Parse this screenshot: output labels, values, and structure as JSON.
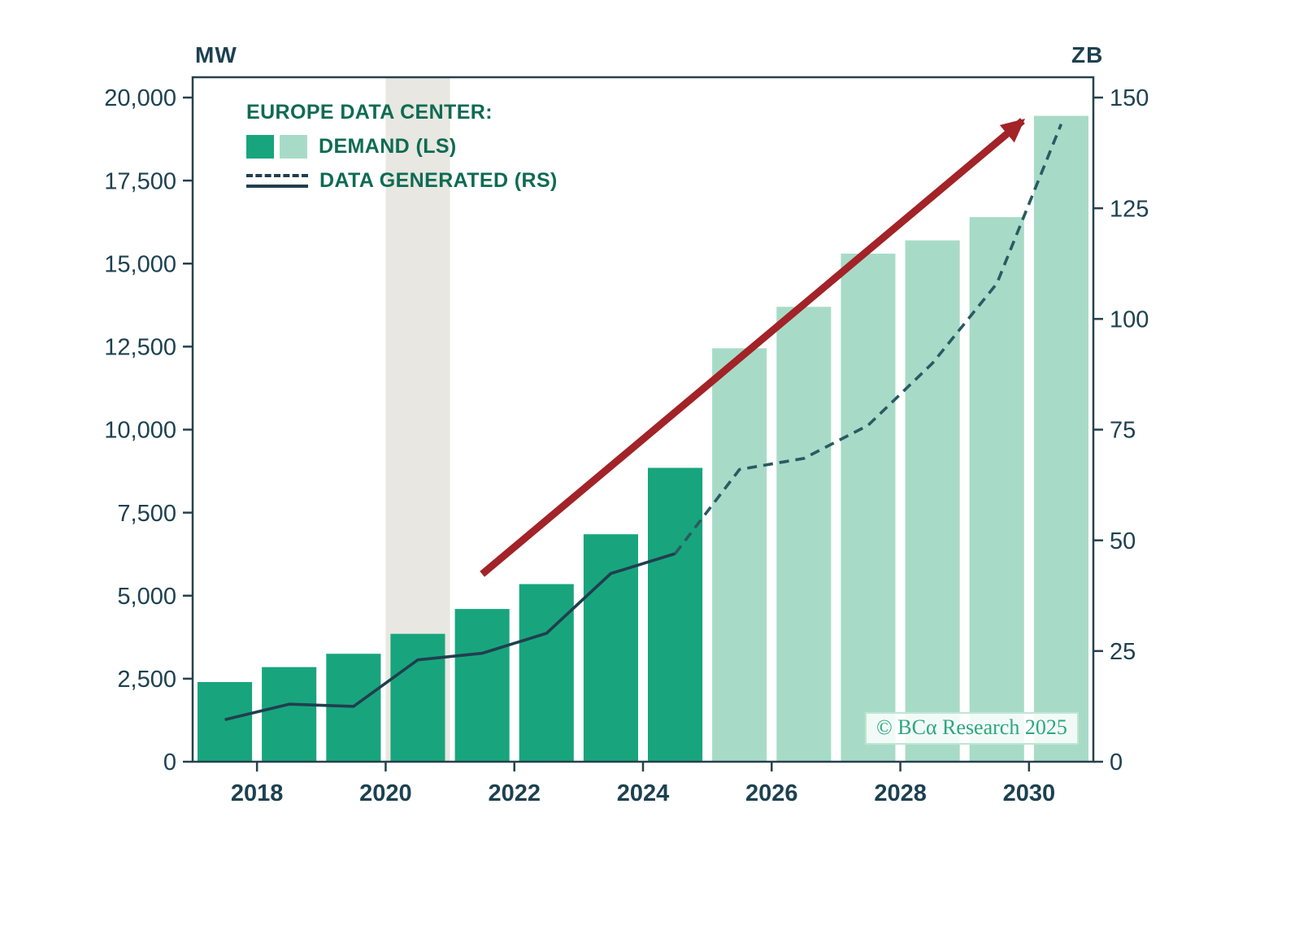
{
  "page": {
    "background": "#ffffff"
  },
  "chart_data": {
    "type": "bar+line",
    "title": "EUROPE DATA CENTER:",
    "watermark": "© BCα Research 2025",
    "axis_color": "#25414d",
    "text_color": "#1d4150",
    "legend_text_color": "#0d6b53",
    "left_axis": {
      "unit": "MW",
      "min": 0,
      "max": 20000,
      "tick_values": [
        0,
        2500,
        5000,
        7500,
        10000,
        12500,
        15000,
        17500,
        20000
      ],
      "tick_labels": [
        "0",
        "2,500",
        "5,000",
        "7,500",
        "10,000",
        "12,500",
        "15,000",
        "17,500",
        "20,000"
      ]
    },
    "right_axis": {
      "unit": "ZB",
      "min": 0,
      "max": 150,
      "tick_values": [
        0,
        25,
        50,
        75,
        100,
        125,
        150
      ],
      "tick_labels": [
        "0",
        "25",
        "50",
        "75",
        "100",
        "125",
        "150"
      ]
    },
    "x_axis": {
      "year_start": 2017,
      "year_end": 2031,
      "tick_years": [
        2018,
        2020,
        2022,
        2024,
        2026,
        2028,
        2030
      ],
      "tick_labels": [
        "2018",
        "2020",
        "2022",
        "2024",
        "2026",
        "2028",
        "2030"
      ]
    },
    "bars": {
      "name": "DEMAND (LS)",
      "axis": "left",
      "actual": {
        "color": "#18a57d",
        "years": [
          2017,
          2018,
          2019,
          2020,
          2021,
          2022,
          2023,
          2024
        ],
        "values_mw": [
          2400,
          2850,
          3250,
          3850,
          4600,
          5350,
          6850,
          8850
        ]
      },
      "forecast": {
        "color": "#a7dbc8",
        "years": [
          2025,
          2026,
          2027,
          2028,
          2029,
          2030
        ],
        "values_mw": [
          12450,
          13700,
          15300,
          15700,
          16400,
          19450
        ]
      }
    },
    "line": {
      "name": "DATA GENERATED (RS)",
      "axis": "right",
      "actual": {
        "color": "#213e4f",
        "years": [
          2017,
          2018,
          2019,
          2020,
          2021,
          2022,
          2023,
          2024
        ],
        "values_zb": [
          9.5,
          13,
          12.5,
          23,
          24.5,
          29,
          42.5,
          47
        ]
      },
      "forecast": {
        "color": "#2b5a61",
        "years": [
          2024,
          2025,
          2026,
          2027,
          2028,
          2029,
          2030
        ],
        "values_zb": [
          47,
          66,
          68.5,
          76,
          90,
          108,
          144
        ]
      }
    },
    "shaded_band": {
      "from_year": 2020,
      "to_year": 2021,
      "color": "#e8e7e1"
    },
    "trend_arrow": {
      "from_year": 2021.5,
      "from_mw": 5650,
      "to_year": 2029.9,
      "to_mw": 19300,
      "color": "#a22328"
    }
  }
}
